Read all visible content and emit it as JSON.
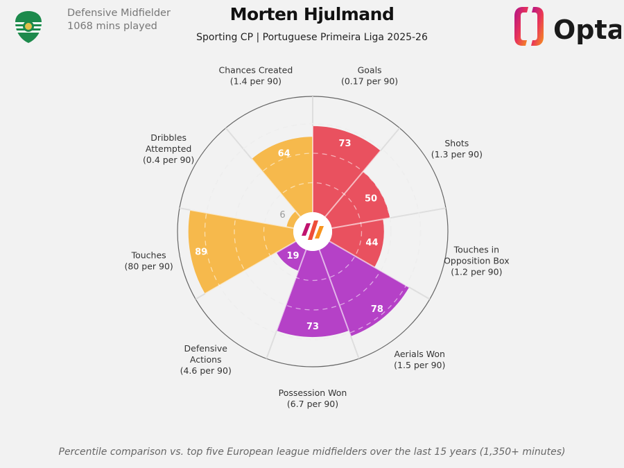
{
  "header": {
    "player_name": "Morten Hjulmand",
    "subtitle": "Sporting CP | Portuguese Primeira Liga 2025-26",
    "position": "Defensive Midfielder",
    "minutes": "1068 mins played",
    "club_crest": "sporting-cp-crest",
    "brand_logo": "Opta",
    "brand_text": "Opta"
  },
  "chart_data": {
    "type": "pizza",
    "value_range": [
      0,
      100
    ],
    "gridlines": [
      25,
      50,
      75
    ],
    "colors": {
      "attacking": "#e9515f",
      "possession": "#f6b94c",
      "defending": "#b541c7"
    },
    "metrics": [
      {
        "label": "Chances Created",
        "sub": "(1.4 per 90)",
        "value": 64,
        "group": "possession"
      },
      {
        "label": "Goals",
        "sub": "(0.17 per 90)",
        "value": 73,
        "group": "attacking"
      },
      {
        "label": "Shots",
        "sub": "(1.3 per 90)",
        "value": 50,
        "group": "attacking"
      },
      {
        "label": "Touches in|Opposition Box",
        "sub": "(1.2 per 90)",
        "value": 44,
        "group": "attacking"
      },
      {
        "label": "Aerials Won",
        "sub": "(1.5 per 90)",
        "value": 78,
        "group": "defending"
      },
      {
        "label": "Possession Won",
        "sub": "(6.7 per 90)",
        "value": 73,
        "group": "defending"
      },
      {
        "label": "Defensive|Actions",
        "sub": "(4.6 per 90)",
        "value": 19,
        "group": "defending"
      },
      {
        "label": "Touches",
        "sub": "(80 per 90)",
        "value": 89,
        "group": "possession"
      },
      {
        "label": "Dribbles|Attempted",
        "sub": "(0.4 per 90)",
        "value": 6,
        "group": "possession"
      }
    ]
  },
  "footnote": "Percentile comparison vs. top five European league midfielders over the last 15 years (1,350+ minutes)"
}
